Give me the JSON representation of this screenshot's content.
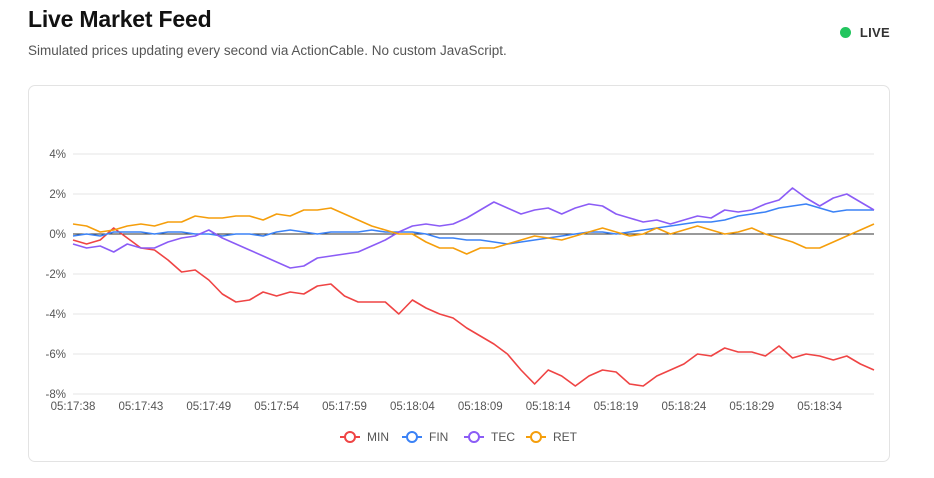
{
  "header": {
    "title": "Live Market Feed",
    "subtitle": "Simulated prices updating every second via ActionCable. No custom JavaScript.",
    "live_label": "LIVE",
    "live_color": "#22c55e"
  },
  "chart_data": {
    "type": "line",
    "title": "",
    "xlabel": "",
    "ylabel": "",
    "ylim": [
      -8,
      4
    ],
    "y_ticks": [
      4,
      2,
      0,
      -2,
      -4,
      -6,
      -8
    ],
    "y_tick_suffix": "%",
    "x_tick_labels": [
      "05:17:38",
      "05:17:43",
      "05:17:49",
      "05:17:54",
      "05:17:59",
      "05:18:04",
      "05:18:09",
      "05:18:14",
      "05:18:19",
      "05:18:24",
      "05:18:29",
      "05:18:34"
    ],
    "x_tick_indices": [
      0,
      5,
      10,
      15,
      20,
      25,
      30,
      35,
      40,
      45,
      50,
      55
    ],
    "grid": true,
    "legend_position": "bottom",
    "series": [
      {
        "name": "MIN",
        "color": "#ef4444",
        "values": [
          -0.3,
          -0.5,
          -0.3,
          0.3,
          -0.2,
          -0.7,
          -0.8,
          -1.3,
          -1.9,
          -1.8,
          -2.3,
          -3.0,
          -3.4,
          -3.3,
          -2.9,
          -3.1,
          -2.9,
          -3.0,
          -2.6,
          -2.5,
          -3.1,
          -3.4,
          -3.4,
          -3.4,
          -4.0,
          -3.3,
          -3.7,
          -4.0,
          -4.2,
          -4.7,
          -5.1,
          -5.5,
          -6.0,
          -6.8,
          -7.5,
          -6.8,
          -7.1,
          -7.6,
          -7.1,
          -6.8,
          -6.9,
          -7.5,
          -7.6,
          -7.1,
          -6.8,
          -6.5,
          -6.0,
          -6.1,
          -5.7,
          -5.9,
          -5.9,
          -6.1,
          -5.6,
          -6.2,
          -6.0,
          -6.1,
          -6.3,
          -6.1,
          -6.5,
          -6.8
        ]
      },
      {
        "name": "FIN",
        "color": "#3b82f6",
        "values": [
          -0.1,
          0.0,
          -0.1,
          0.1,
          0.1,
          0.1,
          0.0,
          0.1,
          0.1,
          0.0,
          0.0,
          -0.1,
          0.0,
          0.0,
          -0.1,
          0.1,
          0.2,
          0.1,
          0.0,
          0.1,
          0.1,
          0.1,
          0.2,
          0.1,
          0.1,
          0.1,
          0.0,
          -0.2,
          -0.2,
          -0.3,
          -0.3,
          -0.4,
          -0.5,
          -0.4,
          -0.3,
          -0.2,
          -0.1,
          0.0,
          0.1,
          0.1,
          0.0,
          0.1,
          0.2,
          0.3,
          0.4,
          0.5,
          0.6,
          0.6,
          0.7,
          0.9,
          1.0,
          1.1,
          1.3,
          1.4,
          1.5,
          1.3,
          1.1,
          1.2,
          1.2,
          1.2
        ]
      },
      {
        "name": "TEC",
        "color": "#8b5cf6",
        "values": [
          -0.5,
          -0.7,
          -0.6,
          -0.9,
          -0.5,
          -0.7,
          -0.7,
          -0.4,
          -0.2,
          -0.1,
          0.2,
          -0.2,
          -0.5,
          -0.8,
          -1.1,
          -1.4,
          -1.7,
          -1.6,
          -1.2,
          -1.1,
          -1.0,
          -0.9,
          -0.6,
          -0.3,
          0.1,
          0.4,
          0.5,
          0.4,
          0.5,
          0.8,
          1.2,
          1.6,
          1.3,
          1.0,
          1.2,
          1.3,
          1.0,
          1.3,
          1.5,
          1.4,
          1.0,
          0.8,
          0.6,
          0.7,
          0.5,
          0.7,
          0.9,
          0.8,
          1.2,
          1.1,
          1.2,
          1.5,
          1.7,
          2.3,
          1.8,
          1.4,
          1.8,
          2.0,
          1.6,
          1.2
        ]
      },
      {
        "name": "RET",
        "color": "#f59e0b",
        "values": [
          0.5,
          0.4,
          0.1,
          0.2,
          0.4,
          0.5,
          0.4,
          0.6,
          0.6,
          0.9,
          0.8,
          0.8,
          0.9,
          0.9,
          0.7,
          1.0,
          0.9,
          1.2,
          1.2,
          1.3,
          1.0,
          0.7,
          0.4,
          0.2,
          0.0,
          0.0,
          -0.4,
          -0.7,
          -0.7,
          -1.0,
          -0.7,
          -0.7,
          -0.5,
          -0.3,
          -0.1,
          -0.2,
          -0.3,
          -0.1,
          0.1,
          0.3,
          0.1,
          -0.1,
          0.0,
          0.3,
          0.0,
          0.2,
          0.4,
          0.2,
          0.0,
          0.1,
          0.3,
          0.0,
          -0.2,
          -0.4,
          -0.7,
          -0.7,
          -0.4,
          -0.1,
          0.2,
          0.5
        ]
      }
    ]
  }
}
